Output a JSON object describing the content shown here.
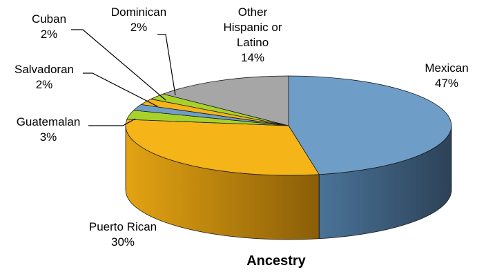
{
  "chart_data": {
    "type": "pie",
    "title": "Ancestry",
    "slices": [
      {
        "label": [
          "Mexican"
        ],
        "pct_text": "47%",
        "value": 47,
        "color": "#6e9ec8",
        "side": "#3b5c78"
      },
      {
        "label": [
          "Puerto Rican"
        ],
        "pct_text": "30%",
        "value": 30,
        "color": "#f5b417",
        "side": "#c48609"
      },
      {
        "label": [
          "Guatemalan"
        ],
        "pct_text": "3%",
        "value": 3,
        "color": "#a8d22a",
        "side": "#6e8e14"
      },
      {
        "label": [
          "Salvadoran"
        ],
        "pct_text": "2%",
        "value": 2,
        "color": "#6e9ec8",
        "side": "#3b5c78"
      },
      {
        "label": [
          "Cuban"
        ],
        "pct_text": "2%",
        "value": 2,
        "color": "#f5b417",
        "side": "#c48609"
      },
      {
        "label": [
          "Dominican"
        ],
        "pct_text": "2%",
        "value": 2,
        "color": "#a8d22a",
        "side": "#6e8e14"
      },
      {
        "label": [
          "Other",
          "Hispanic or",
          "Latino"
        ],
        "pct_text": "14%",
        "value": 14,
        "color": "#a6a6a6",
        "side": "#6f6f6f"
      }
    ]
  }
}
